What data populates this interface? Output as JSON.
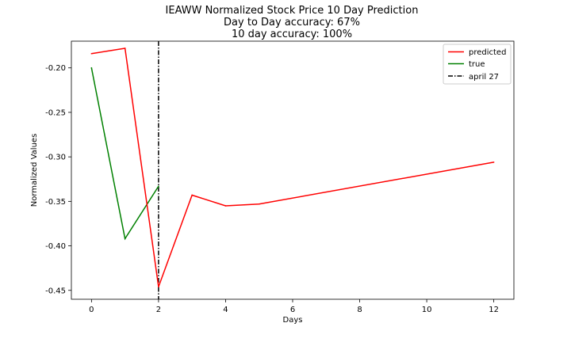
{
  "chart_data": {
    "type": "line",
    "title_lines": [
      "IEAWW Normalized Stock Price 10 Day Prediction",
      "Day to Day accuracy: 67%",
      "10 day accuracy: 100%"
    ],
    "xlabel": "Days",
    "ylabel": "Normalized Values",
    "xlim": [
      -0.6,
      12.6
    ],
    "ylim": [
      -0.46,
      -0.17
    ],
    "xticks": [
      0,
      2,
      4,
      6,
      8,
      10,
      12
    ],
    "xtick_labels": [
      "0",
      "2",
      "4",
      "6",
      "8",
      "10",
      "12"
    ],
    "yticks": [
      -0.2,
      -0.25,
      -0.3,
      -0.35,
      -0.4,
      -0.45
    ],
    "ytick_labels": [
      "-0.20",
      "-0.25",
      "-0.30",
      "-0.35",
      "-0.40",
      "-0.45"
    ],
    "grid": false,
    "legend_position": "top-right",
    "series": [
      {
        "name": "predicted",
        "color": "#ff0000",
        "x": [
          0,
          1,
          2,
          3,
          4,
          5,
          12
        ],
        "y": [
          -0.184,
          -0.178,
          -0.446,
          -0.343,
          -0.355,
          -0.353,
          -0.306
        ]
      },
      {
        "name": "true",
        "color": "#008000",
        "x": [
          0,
          1,
          2
        ],
        "y": [
          -0.2,
          -0.392,
          -0.333
        ]
      }
    ],
    "vline": {
      "name": "april 27",
      "x": 2,
      "color": "#000000",
      "style": "dash-dot"
    }
  }
}
